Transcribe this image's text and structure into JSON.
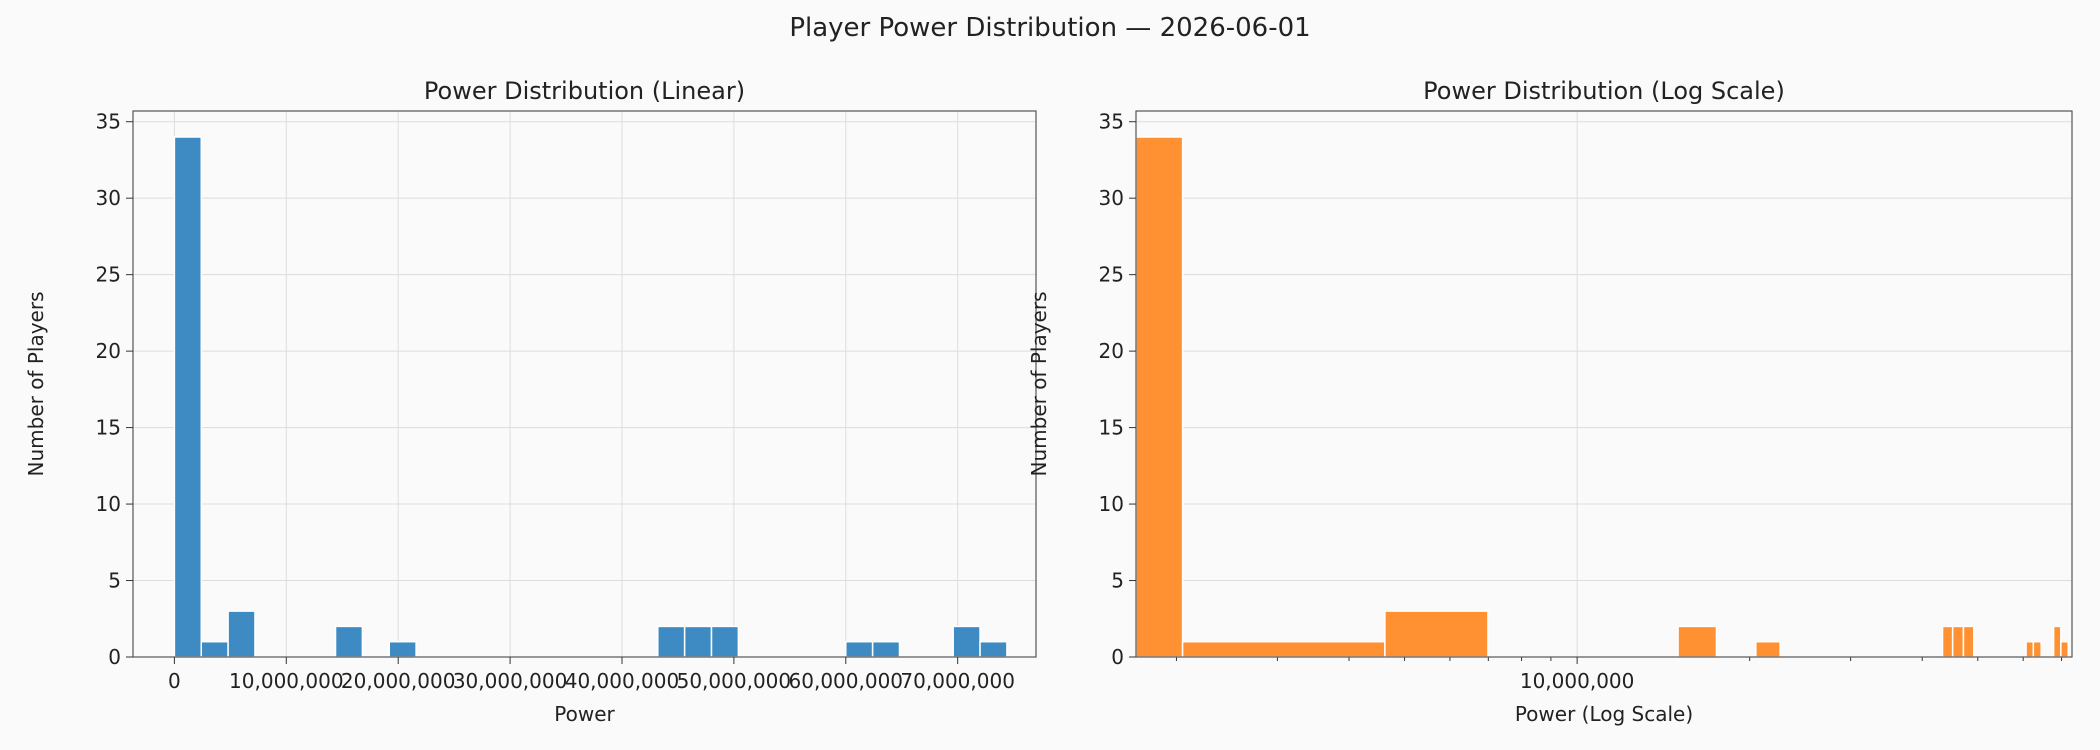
{
  "suptitle": "Player Power Distribution — 2026-06-01",
  "colors": {
    "linear_bar": "#3d8bc2",
    "log_bar": "#ff9133",
    "grid": "#dddddd",
    "axes": "#555555"
  },
  "chart_data": [
    {
      "type": "bar",
      "title": "Power Distribution (Linear)",
      "xlabel": "Power",
      "ylabel": "Number of Players",
      "xscale": "linear",
      "xlim": [
        -3700000,
        77000000
      ],
      "ylim": [
        0,
        35.7
      ],
      "grid": true,
      "xticks": [
        0,
        10000000,
        20000000,
        30000000,
        40000000,
        50000000,
        60000000,
        70000000
      ],
      "xtick_labels": [
        "0",
        "10,000,000",
        "20,000,000",
        "30,000,000",
        "40,000,000",
        "50,000,000",
        "60,000,000",
        "70,000,000"
      ],
      "yticks": [
        0,
        5,
        10,
        15,
        20,
        25,
        30,
        35
      ],
      "ytick_labels": [
        "0",
        "5",
        "10",
        "15",
        "20",
        "25",
        "30",
        "35"
      ],
      "bins": [
        {
          "x0": 0,
          "x1": 2400000,
          "count": 34
        },
        {
          "x0": 2400000,
          "x1": 4800000,
          "count": 1
        },
        {
          "x0": 4800000,
          "x1": 7200000,
          "count": 3
        },
        {
          "x0": 14400000,
          "x1": 16800000,
          "count": 2
        },
        {
          "x0": 19200000,
          "x1": 21600000,
          "count": 1
        },
        {
          "x0": 43200000,
          "x1": 45600000,
          "count": 2
        },
        {
          "x0": 45600000,
          "x1": 48000000,
          "count": 2
        },
        {
          "x0": 48000000,
          "x1": 50400000,
          "count": 2
        },
        {
          "x0": 60000000,
          "x1": 62400000,
          "count": 1
        },
        {
          "x0": 62400000,
          "x1": 64800000,
          "count": 1
        },
        {
          "x0": 69600000,
          "x1": 72000000,
          "count": 2
        },
        {
          "x0": 72000000,
          "x1": 74400000,
          "count": 1
        }
      ]
    },
    {
      "type": "bar",
      "title": "Power Distribution (Log Scale)",
      "xlabel": "Power (Log Scale)",
      "ylabel": "Number of Players",
      "xscale": "log",
      "xlim": [
        1700000,
        73000000
      ],
      "ylim": [
        0,
        35.7
      ],
      "grid": true,
      "xticks": [
        10000000
      ],
      "xtick_labels": [
        "10,000,000"
      ],
      "yticks": [
        0,
        5,
        10,
        15,
        20,
        25,
        30,
        35
      ],
      "ytick_labels": [
        "0",
        "5",
        "10",
        "15",
        "20",
        "25",
        "30",
        "35"
      ],
      "bins": [
        {
          "x0": 1700000,
          "x1": 2050000,
          "count": 34
        },
        {
          "x0": 2050000,
          "x1": 4620000,
          "count": 1
        },
        {
          "x0": 4620000,
          "x1": 6990000,
          "count": 3
        },
        {
          "x0": 15000000,
          "x1": 17500000,
          "count": 2
        },
        {
          "x0": 20500000,
          "x1": 22600000,
          "count": 1
        },
        {
          "x0": 43400000,
          "x1": 45200000,
          "count": 2
        },
        {
          "x0": 45200000,
          "x1": 47200000,
          "count": 2
        },
        {
          "x0": 47200000,
          "x1": 49200000,
          "count": 2
        },
        {
          "x0": 60700000,
          "x1": 62500000,
          "count": 1
        },
        {
          "x0": 62500000,
          "x1": 64500000,
          "count": 1
        },
        {
          "x0": 67800000,
          "x1": 69800000,
          "count": 2
        },
        {
          "x0": 69800000,
          "x1": 71900000,
          "count": 1
        }
      ]
    }
  ]
}
